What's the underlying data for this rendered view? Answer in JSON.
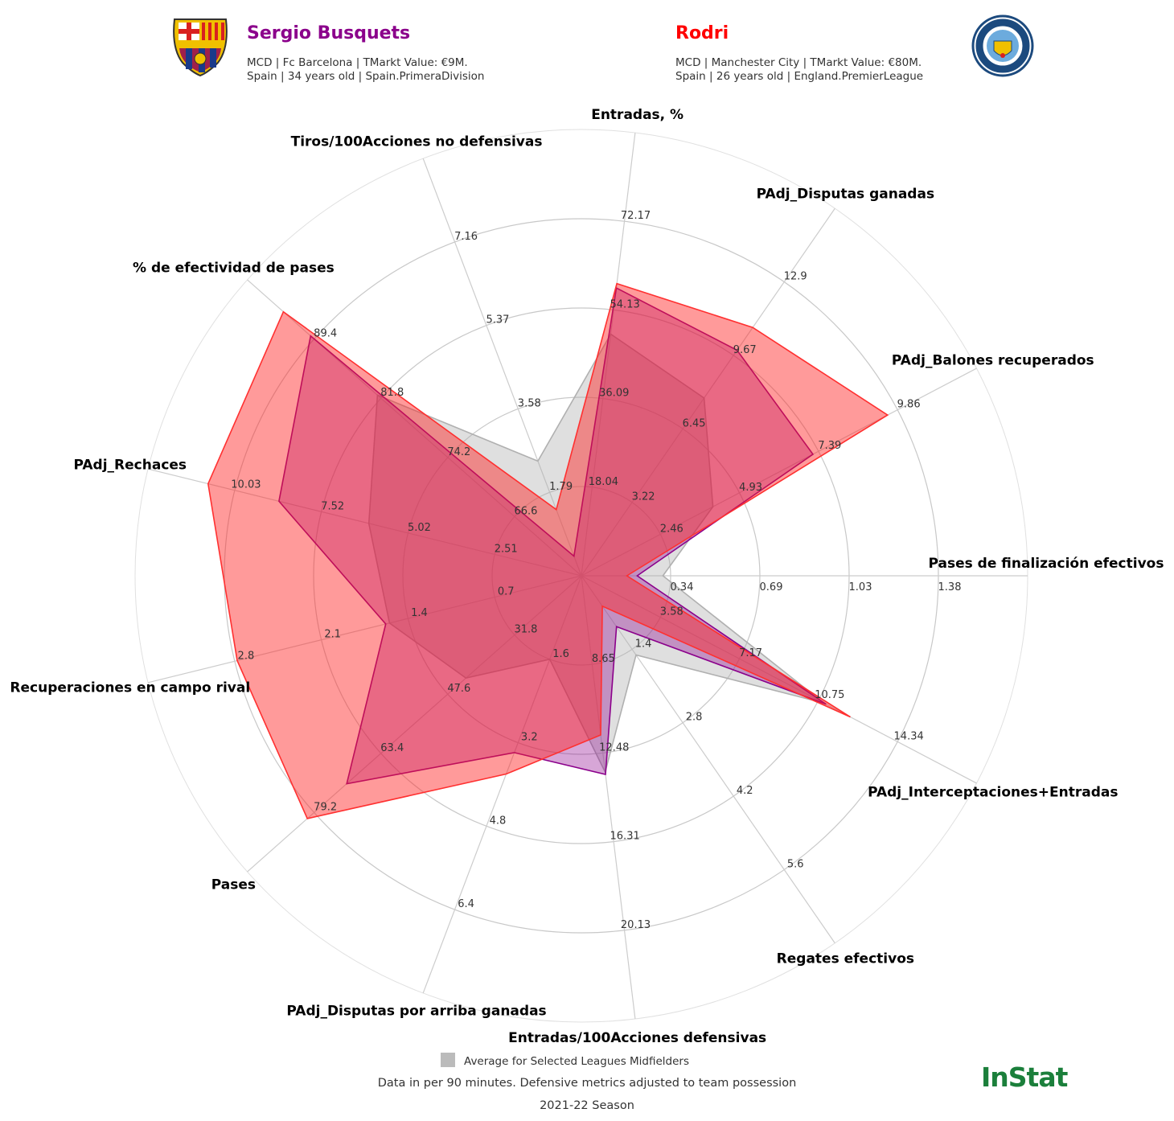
{
  "players": [
    {
      "name": "Sergio Busquets",
      "color": "#8b008b",
      "line1": "MCD | Fc Barcelona | TMarkt Value: €9M.",
      "line2": "Spain | 34 years old | Spain.PrimeraDivision",
      "logo_text": "FCB"
    },
    {
      "name": "Rodri",
      "color": "#ff0000",
      "line1": "MCD | Manchester City | TMarkt Value: €80M.",
      "line2": "Spain | 26 years old | England.PremierLeague",
      "logo_text": "MANCHESTER CITY"
    }
  ],
  "legend": {
    "average_label": "Average for Selected Leagues Midfielders",
    "average_color": "#bbbbbb"
  },
  "footer": {
    "note": "Data in per 90 minutes. Defensive metrics adjusted to team possession",
    "season": "2021-22 Season",
    "brand": "InStat",
    "brand_color": "#1b7f3b"
  },
  "chart_data": {
    "type": "radar",
    "params": [
      "Pases de finalización efectivos",
      "PAdj_Balones recuperados",
      "PAdj_Disputas ganadas",
      "Entradas, %",
      "Tiros/100Acciones no defensivas",
      "% de efectividad de pases",
      "PAdj_Rechaces",
      "Recuperaciones en campo rival",
      "Pases",
      "PAdj_Disputas por arriba ganadas",
      "Entradas/100Acciones defensivas",
      "Regates efectivos",
      "PAdj_Interceptaciones+Entradas"
    ],
    "ring_ticks": [
      [
        "0.34",
        "0.69",
        "1.03",
        "1.38"
      ],
      [
        "2.46",
        "4.93",
        "7.39",
        "9.86"
      ],
      [
        "3.22",
        "6.45",
        "9.67",
        "12.9"
      ],
      [
        "18.04",
        "36.09",
        "54.13",
        "72.17"
      ],
      [
        "1.79",
        "3.58",
        "5.37",
        "7.16"
      ],
      [
        "66.6",
        "74.2",
        "81.8",
        "89.4"
      ],
      [
        "2.51",
        "5.02",
        "7.52",
        "10.03"
      ],
      [
        "0.7",
        "1.4",
        "2.1",
        "2.8"
      ],
      [
        "31.8",
        "47.6",
        "63.4",
        "79.2"
      ],
      [
        "1.6",
        "3.2",
        "4.8",
        "6.4"
      ],
      [
        "8.65",
        "12.48",
        "16.31",
        "20.13"
      ],
      [
        "1.4",
        "2.8",
        "4.2",
        "5.6"
      ],
      [
        "3.58",
        "7.17",
        "10.75",
        "14.34"
      ]
    ],
    "series": [
      {
        "name": "Average for Selected Leagues Midfielders",
        "color": "#aaaaaa",
        "values": [
          0.31,
          4.1,
          7.8,
          49.2,
          2.46,
          82.2,
          6.15,
          1.55,
          43.3,
          1.6,
          13.3,
          1.51,
          11.0
        ]
      },
      {
        "name": "Sergio Busquets",
        "color": "#8b008b",
        "values": [
          0.21,
          7.22,
          9.9,
          58.6,
          0.42,
          89.8,
          8.75,
          1.58,
          71.5,
          3.39,
          13.4,
          0.97,
          11.1
        ]
      },
      {
        "name": "Rodri",
        "color": "#ff3030",
        "values": [
          0.17,
          9.55,
          10.9,
          59.5,
          1.42,
          92.9,
          10.8,
          2.78,
          80.8,
          3.8,
          11.7,
          0.58,
          12.2
        ]
      }
    ],
    "grid": true
  }
}
